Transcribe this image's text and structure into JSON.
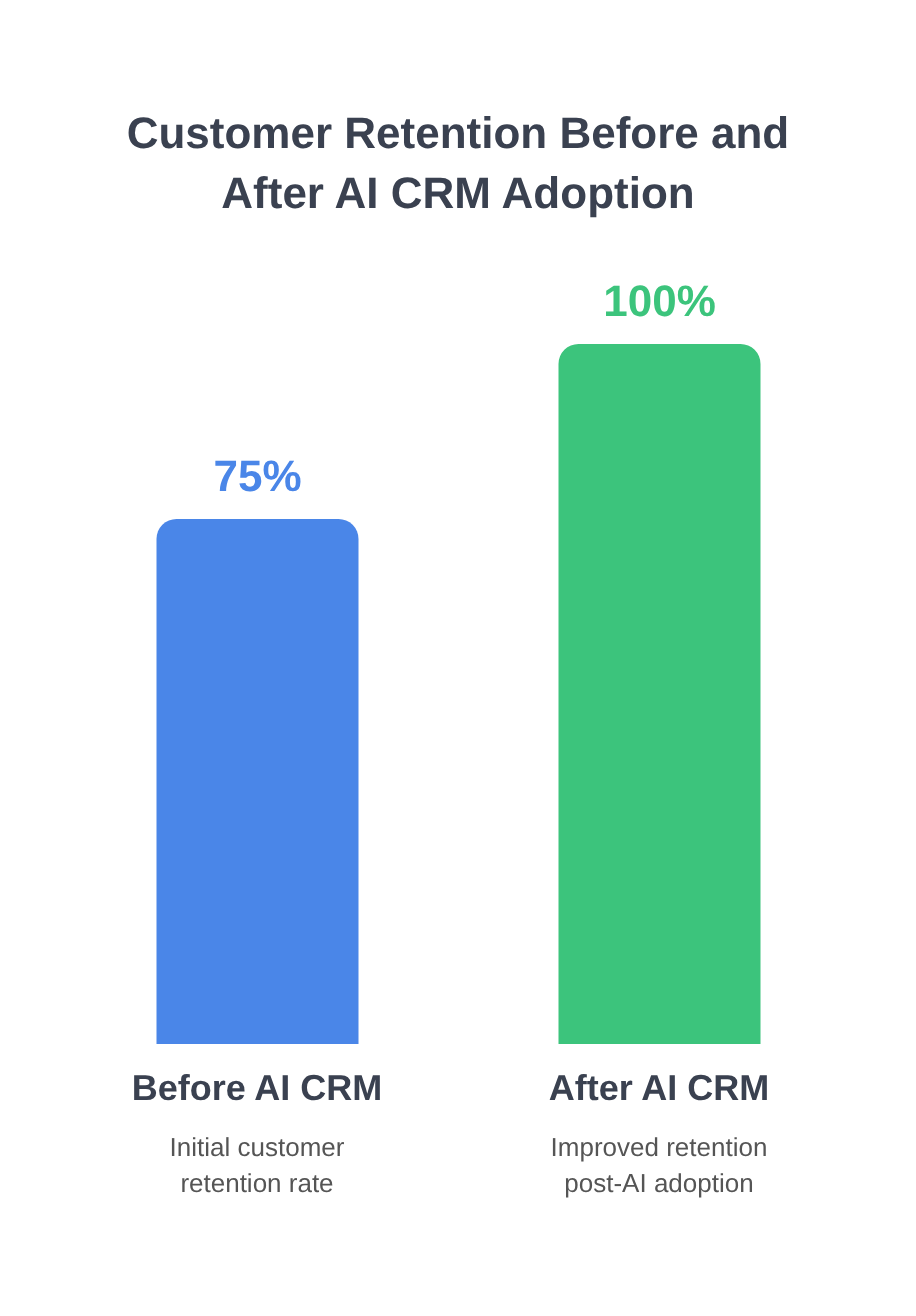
{
  "chart_data": {
    "type": "bar",
    "title": "Customer Retention Before and After AI CRM Adoption",
    "categories": [
      "Before AI CRM",
      "After AI CRM"
    ],
    "values": [
      75,
      100
    ],
    "colors": [
      "#4a86e8",
      "#3cc47c"
    ],
    "value_labels": [
      "75%",
      "100%"
    ],
    "annotations": [
      "Initial customer retention rate",
      "Improved retention post-AI adoption"
    ]
  }
}
